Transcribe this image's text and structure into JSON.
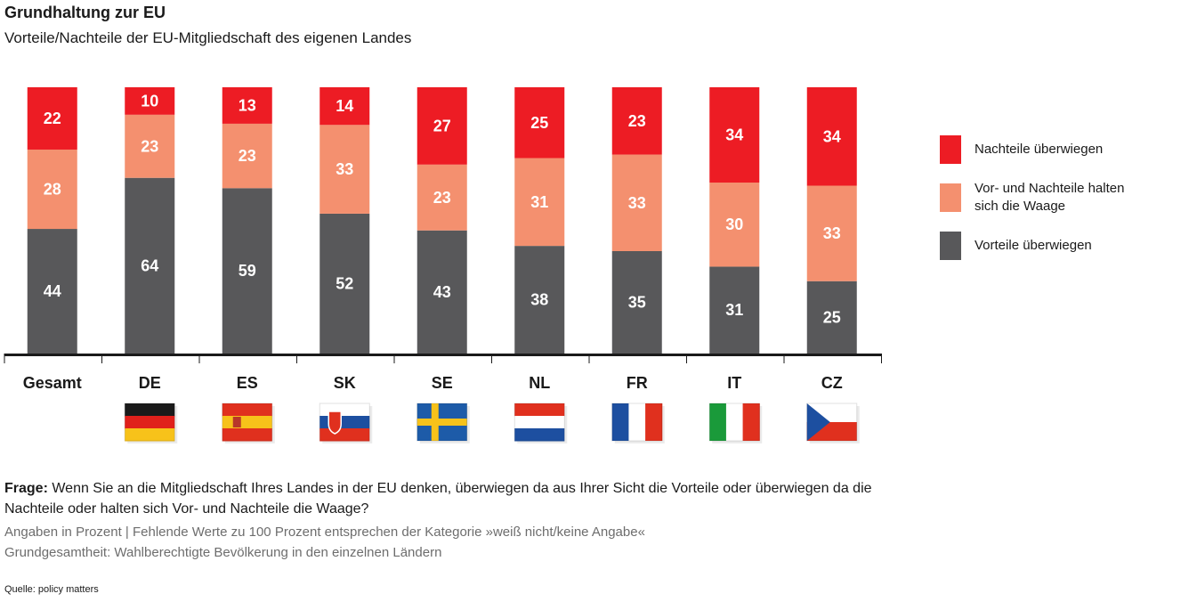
{
  "title": "Grundhaltung zur EU",
  "subtitle": "Vorteile/Nachteile der EU-Mitgliedschaft des eigenen Landes",
  "chart_data": {
    "type": "bar",
    "stacked": true,
    "categories": [
      "Gesamt",
      "DE",
      "ES",
      "SK",
      "SE",
      "NL",
      "FR",
      "IT",
      "CZ"
    ],
    "series": [
      {
        "name": "Vorteile überwiegen",
        "color": "#58585a",
        "values": [
          44,
          64,
          59,
          52,
          43,
          38,
          35,
          31,
          25
        ]
      },
      {
        "name": "Vor- und Nachteile halten sich die Waage",
        "color": "#f4906f",
        "values": [
          28,
          23,
          23,
          33,
          23,
          31,
          33,
          30,
          33
        ]
      },
      {
        "name": "Nachteile überwiegen",
        "color": "#ed1c24",
        "values": [
          22,
          10,
          13,
          14,
          27,
          25,
          23,
          34,
          34
        ]
      }
    ],
    "legend_position": "right",
    "grid": false
  },
  "legend": [
    {
      "label": "Nachteile überwiegen",
      "color": "#ed1c24"
    },
    {
      "label": "Vor- und Nachteile halten sich die Waage",
      "color": "#f4906f"
    },
    {
      "label": "Vorteile überwiegen",
      "color": "#58585a"
    }
  ],
  "flags": [
    null,
    {
      "icon": "germany-flag-icon",
      "orient": "h",
      "colors": [
        "#1a1a1a",
        "#e0201b",
        "#f7c21a"
      ]
    },
    {
      "icon": "spain-flag-icon",
      "orient": "h",
      "colors": [
        "#e0301e",
        "#f7c21a",
        "#e0301e"
      ]
    },
    {
      "icon": "slovakia-flag-icon",
      "orient": "h",
      "colors": [
        "#ffffff",
        "#1d4fa0",
        "#e0301e"
      ]
    },
    {
      "icon": "sweden-flag-icon",
      "orient": "cross",
      "colors": [
        "#1d5ba8",
        "#f7c21a"
      ]
    },
    {
      "icon": "netherlands-flag-icon",
      "orient": "h",
      "colors": [
        "#e0301e",
        "#ffffff",
        "#1d4fa0"
      ]
    },
    {
      "icon": "france-flag-icon",
      "orient": "v",
      "colors": [
        "#1d4fa0",
        "#ffffff",
        "#e0301e"
      ]
    },
    {
      "icon": "italy-flag-icon",
      "orient": "v",
      "colors": [
        "#1a9a3a",
        "#ffffff",
        "#e0301e"
      ]
    },
    {
      "icon": "czech-flag-icon",
      "orient": "cz",
      "colors": [
        "#ffffff",
        "#e0301e",
        "#1d4fa0"
      ]
    }
  ],
  "question_label": "Frage:",
  "question_text": " Wenn Sie an die Mitgliedschaft Ihres Landes in der EU denken, überwiegen da aus Ihrer Sicht die Vorteile oder überwiegen da die Nachteile oder halten sich Vor- und Nachteile die Waage?",
  "note1": "Angaben in Prozent | Fehlende Werte zu 100 Prozent entsprechen der Kategorie »weiß nicht/keine Angabe«",
  "note2": "Grundgesamtheit: Wahlberechtigte Bevölkerung in den einzelnen Ländern",
  "source": "Quelle: policy matters"
}
